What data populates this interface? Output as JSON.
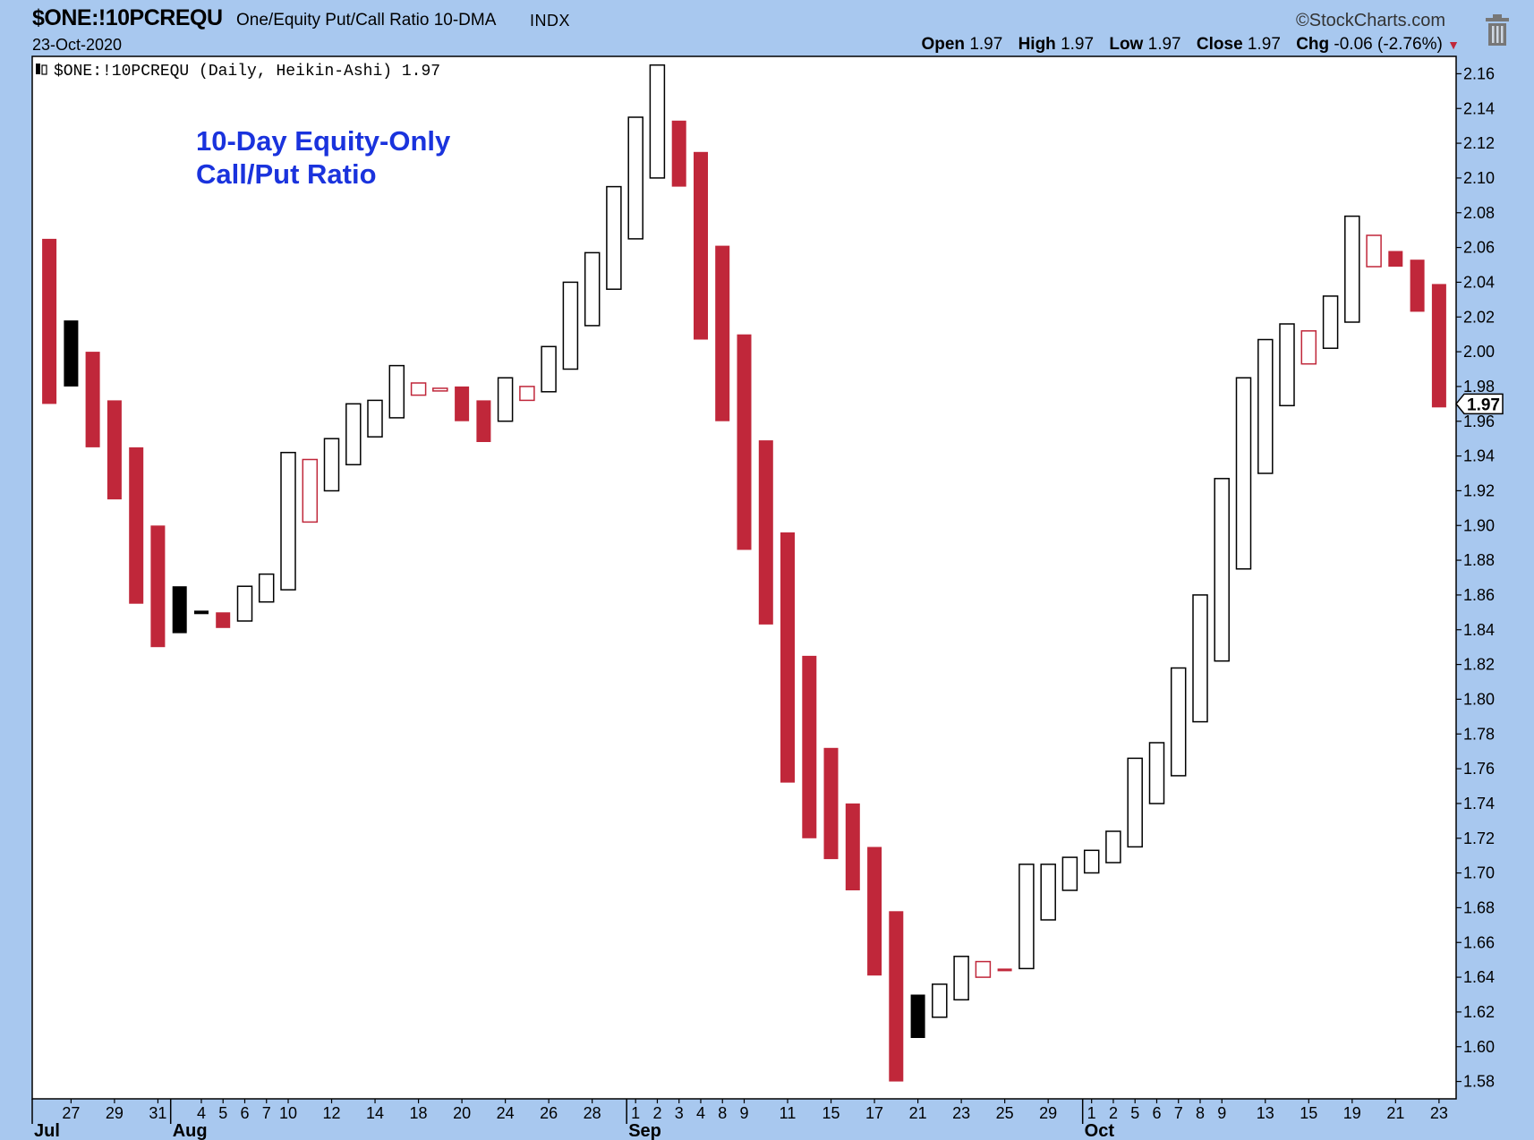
{
  "header": {
    "symbol": "$ONE:!10PCREQU",
    "description": "One/Equity Put/Call Ratio 10-DMA",
    "exchange": "INDX",
    "date": "23-Oct-2020",
    "brand": "©StockCharts.com",
    "open_label": "Open",
    "open": "1.97",
    "high_label": "High",
    "high": "1.97",
    "low_label": "Low",
    "low": "1.97",
    "close_label": "Close",
    "close": "1.97",
    "chg_label": "Chg",
    "chg": "-0.06 (-2.76%)"
  },
  "colors": {
    "background": "#a8c8ef",
    "plot": "#ffffff",
    "down": "#c0273a",
    "up_hollow": "#ffffff",
    "neutral": "#000000",
    "annotation": "#1a33dd"
  },
  "icons": {
    "trash": "trash-icon",
    "arrow": "triangle-down-icon"
  },
  "chart_data": {
    "type": "candlestick",
    "style": "Heikin-Ashi",
    "legend": "$ONE:!10PCREQU (Daily, Heikin-Ashi) 1.97",
    "annotation": [
      "10-Day Equity-Only",
      "Call/Put Ratio"
    ],
    "last_value_label": "1.97",
    "ylim": [
      1.57,
      2.17
    ],
    "y_ticks": [
      "1.58",
      "1.60",
      "1.62",
      "1.64",
      "1.66",
      "1.68",
      "1.70",
      "1.72",
      "1.74",
      "1.76",
      "1.78",
      "1.80",
      "1.82",
      "1.84",
      "1.86",
      "1.88",
      "1.90",
      "1.92",
      "1.94",
      "1.96",
      "1.98",
      "2.00",
      "2.02",
      "2.04",
      "2.06",
      "2.08",
      "2.10",
      "2.12",
      "2.14",
      "2.16"
    ],
    "x_ticks": [
      "27",
      "29",
      "31",
      "4",
      "5",
      "6",
      "7",
      "10",
      "12",
      "14",
      "18",
      "20",
      "24",
      "26",
      "28",
      "1",
      "2",
      "3",
      "4",
      "8",
      "9",
      "11",
      "15",
      "17",
      "21",
      "23",
      "25",
      "29",
      "1",
      "2",
      "5",
      "6",
      "7",
      "8",
      "9",
      "13",
      "15",
      "19",
      "21",
      "23"
    ],
    "x_tick_index": [
      1,
      3,
      5,
      7,
      8,
      9,
      10,
      11,
      13,
      15,
      17,
      19,
      21,
      23,
      25,
      27,
      28,
      29,
      30,
      31,
      32,
      34,
      36,
      38,
      40,
      42,
      44,
      46,
      48,
      49,
      50,
      51,
      52,
      53,
      54,
      56,
      58,
      60,
      62,
      64
    ],
    "months": [
      {
        "label": "Jul",
        "index": 0
      },
      {
        "label": "Aug",
        "index": 6
      },
      {
        "label": "Sep",
        "index": 27
      },
      {
        "label": "Oct",
        "index": 48
      }
    ],
    "candles": [
      {
        "o": 2.065,
        "c": 1.97,
        "s": "down"
      },
      {
        "o": 2.018,
        "c": 1.98,
        "s": "black"
      },
      {
        "o": 2.0,
        "c": 1.945,
        "s": "down"
      },
      {
        "o": 1.972,
        "c": 1.915,
        "s": "down"
      },
      {
        "o": 1.945,
        "c": 1.855,
        "s": "down"
      },
      {
        "o": 1.9,
        "c": 1.83,
        "s": "down"
      },
      {
        "o": 1.865,
        "c": 1.838,
        "s": "black"
      },
      {
        "o": 1.851,
        "c": 1.849,
        "s": "black"
      },
      {
        "o": 1.85,
        "c": 1.841,
        "s": "down"
      },
      {
        "o": 1.845,
        "c": 1.865,
        "s": "up"
      },
      {
        "o": 1.856,
        "c": 1.872,
        "s": "up"
      },
      {
        "o": 1.863,
        "c": 1.942,
        "s": "up"
      },
      {
        "o": 1.902,
        "c": 1.938,
        "s": "hollowdown"
      },
      {
        "o": 1.92,
        "c": 1.95,
        "s": "up"
      },
      {
        "o": 1.935,
        "c": 1.97,
        "s": "up"
      },
      {
        "o": 1.951,
        "c": 1.972,
        "s": "up"
      },
      {
        "o": 1.962,
        "c": 1.992,
        "s": "up"
      },
      {
        "o": 1.975,
        "c": 1.982,
        "s": "hollowdown"
      },
      {
        "o": 1.979,
        "c": 1.978,
        "s": "hollowdown"
      },
      {
        "o": 1.98,
        "c": 1.96,
        "s": "down"
      },
      {
        "o": 1.972,
        "c": 1.948,
        "s": "down"
      },
      {
        "o": 1.96,
        "c": 1.985,
        "s": "up"
      },
      {
        "o": 1.98,
        "c": 1.972,
        "s": "hollowdown"
      },
      {
        "o": 1.977,
        "c": 2.003,
        "s": "up"
      },
      {
        "o": 1.99,
        "c": 2.04,
        "s": "up"
      },
      {
        "o": 2.015,
        "c": 2.057,
        "s": "up"
      },
      {
        "o": 2.036,
        "c": 2.095,
        "s": "up"
      },
      {
        "o": 2.065,
        "c": 2.135,
        "s": "up"
      },
      {
        "o": 2.1,
        "c": 2.165,
        "s": "up"
      },
      {
        "o": 2.133,
        "c": 2.095,
        "s": "down"
      },
      {
        "o": 2.115,
        "c": 2.007,
        "s": "down"
      },
      {
        "o": 2.061,
        "c": 1.96,
        "s": "down"
      },
      {
        "o": 2.01,
        "c": 1.886,
        "s": "down"
      },
      {
        "o": 1.949,
        "c": 1.843,
        "s": "down"
      },
      {
        "o": 1.896,
        "c": 1.752,
        "s": "down"
      },
      {
        "o": 1.825,
        "c": 1.72,
        "s": "down"
      },
      {
        "o": 1.772,
        "c": 1.708,
        "s": "down"
      },
      {
        "o": 1.74,
        "c": 1.69,
        "s": "down"
      },
      {
        "o": 1.715,
        "c": 1.641,
        "s": "down"
      },
      {
        "o": 1.678,
        "c": 1.58,
        "s": "down"
      },
      {
        "o": 1.63,
        "c": 1.605,
        "s": "black"
      },
      {
        "o": 1.617,
        "c": 1.636,
        "s": "up"
      },
      {
        "o": 1.627,
        "c": 1.652,
        "s": "up"
      },
      {
        "o": 1.649,
        "c": 1.64,
        "s": "hollowdown"
      },
      {
        "o": 1.645,
        "c": 1.644,
        "s": "down"
      },
      {
        "o": 1.645,
        "c": 1.705,
        "s": "up"
      },
      {
        "o": 1.673,
        "c": 1.705,
        "s": "up"
      },
      {
        "o": 1.69,
        "c": 1.709,
        "s": "up"
      },
      {
        "o": 1.7,
        "c": 1.713,
        "s": "up"
      },
      {
        "o": 1.706,
        "c": 1.724,
        "s": "up"
      },
      {
        "o": 1.715,
        "c": 1.766,
        "s": "up"
      },
      {
        "o": 1.74,
        "c": 1.775,
        "s": "up"
      },
      {
        "o": 1.756,
        "c": 1.818,
        "s": "up"
      },
      {
        "o": 1.787,
        "c": 1.86,
        "s": "up"
      },
      {
        "o": 1.822,
        "c": 1.927,
        "s": "up"
      },
      {
        "o": 1.875,
        "c": 1.985,
        "s": "up"
      },
      {
        "o": 1.93,
        "c": 2.007,
        "s": "up"
      },
      {
        "o": 1.969,
        "c": 2.016,
        "s": "up"
      },
      {
        "o": 2.012,
        "c": 1.993,
        "s": "hollowdown"
      },
      {
        "o": 2.002,
        "c": 2.032,
        "s": "up"
      },
      {
        "o": 2.017,
        "c": 2.078,
        "s": "up"
      },
      {
        "o": 2.067,
        "c": 2.049,
        "s": "hollowdown"
      },
      {
        "o": 2.058,
        "c": 2.049,
        "s": "down"
      },
      {
        "o": 2.053,
        "c": 2.023,
        "s": "down"
      },
      {
        "o": 2.039,
        "c": 1.968,
        "s": "down"
      }
    ]
  }
}
